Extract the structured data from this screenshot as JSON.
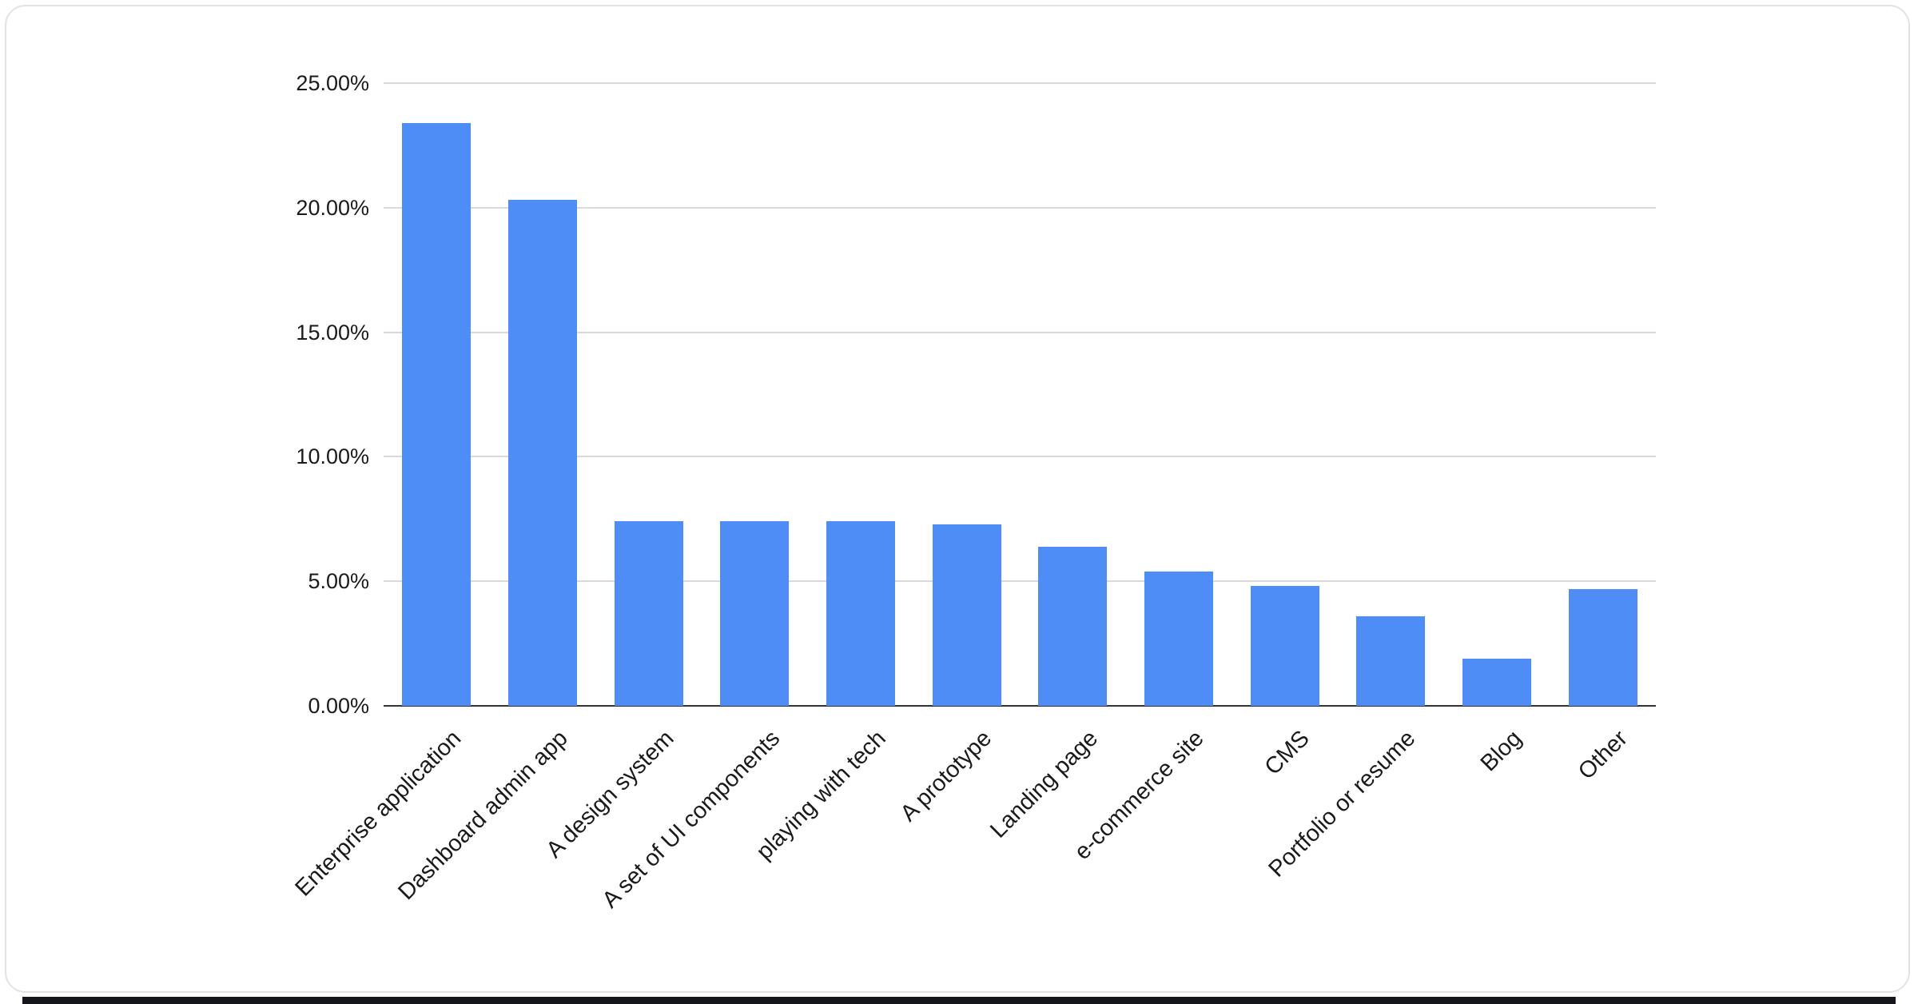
{
  "page": {
    "background_color": "#ffffff",
    "card_border_color": "#e2e2e2",
    "bottom_strip_color": "#15151c"
  },
  "chart_data": {
    "type": "bar",
    "title": "",
    "categories": [
      "Enterprise application",
      "Dashboard admin app",
      "A design system",
      "A set of UI components",
      "playing with tech",
      "A prototype",
      "Landing page",
      "e-commerce site",
      "CMS",
      "Portfolio or resume",
      "Blog",
      "Other"
    ],
    "values": [
      23.4,
      20.3,
      7.4,
      7.4,
      7.4,
      7.3,
      6.4,
      5.4,
      4.8,
      3.6,
      1.9,
      4.7
    ],
    "value_unit": "%",
    "y_ticks": [
      "0.00%",
      "5.00%",
      "10.00%",
      "15.00%",
      "20.00%",
      "25.00%"
    ],
    "y_tick_values": [
      0,
      5,
      10,
      15,
      20,
      25
    ],
    "ylim": [
      0,
      25
    ],
    "grid": true,
    "legend_position": "none",
    "x_label_rotation": -45,
    "bar_color": "#4e8df5",
    "gridline_color": "#d9d9d9",
    "axis_line_color": "#333333",
    "label_color": "#1a1a1a"
  }
}
